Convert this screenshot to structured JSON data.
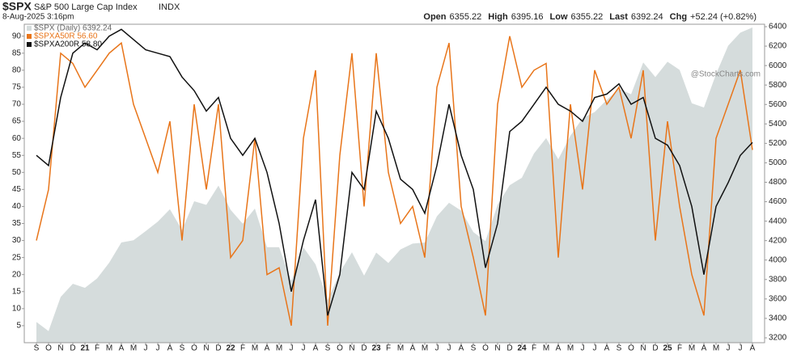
{
  "chart_data": {
    "type": "line",
    "title": "$SPX",
    "subtitle": "S&P 500 Large Cap Index",
    "exchange": "INDX",
    "date": "8-Aug-2025 3:16pm",
    "quote": [
      {
        "label": "Open",
        "value": "6355.22"
      },
      {
        "label": "High",
        "value": "6395.16"
      },
      {
        "label": "Low",
        "value": "6355.22"
      },
      {
        "label": "Last",
        "value": "6392.24"
      },
      {
        "label": "Chg",
        "value": "+52.24 (+0.82%)"
      }
    ],
    "watermark": "@StockCharts.com",
    "categories": [
      "S",
      "O",
      "N",
      "D",
      "21",
      "F",
      "M",
      "A",
      "M",
      "J",
      "J",
      "A",
      "S",
      "O",
      "N",
      "D",
      "22",
      "F",
      "M",
      "A",
      "M",
      "J",
      "J",
      "A",
      "S",
      "O",
      "N",
      "D",
      "23",
      "F",
      "M",
      "A",
      "M",
      "J",
      "J",
      "A",
      "S",
      "O",
      "N",
      "D",
      "24",
      "F",
      "M",
      "A",
      "M",
      "J",
      "J",
      "A",
      "S",
      "O",
      "N",
      "D",
      "25",
      "F",
      "M",
      "A",
      "M",
      "J",
      "J",
      "A"
    ],
    "series": [
      {
        "name": "$SPX (Daily) 6392.24",
        "color": "#d5dcdc",
        "axis": "y2",
        "style": "area",
        "values": [
          3363,
          3270,
          3621,
          3756,
          3714,
          3811,
          3973,
          4181,
          4204,
          4297,
          4395,
          4523,
          4308,
          4605,
          4567,
          4766,
          4516,
          4374,
          4530,
          4132,
          4132,
          3785,
          4130,
          3955,
          3586,
          3872,
          4080,
          3840,
          4077,
          3970,
          4109,
          4169,
          4180,
          4450,
          4589,
          4508,
          4288,
          4194,
          4568,
          4770,
          4846,
          5096,
          5254,
          5036,
          5278,
          5460,
          5522,
          5648,
          5762,
          5705,
          6032,
          5882,
          6040,
          5955,
          5612,
          5569,
          5912,
          6205,
          6339,
          6392
        ]
      },
      {
        "name": "$SPXA50R 56.60",
        "color": "#e8751a",
        "style": "line",
        "values": [
          30,
          45,
          85,
          82,
          75,
          80,
          85,
          88,
          70,
          60,
          50,
          65,
          30,
          70,
          45,
          70,
          25,
          30,
          60,
          20,
          22,
          5,
          60,
          80,
          5,
          55,
          85,
          40,
          85,
          50,
          35,
          40,
          25,
          75,
          88,
          40,
          25,
          8,
          70,
          90,
          75,
          80,
          82,
          25,
          70,
          45,
          80,
          70,
          75,
          60,
          80,
          30,
          65,
          40,
          20,
          8,
          60,
          70,
          80,
          56.6
        ]
      },
      {
        "name": "$SPXA200R 58.80",
        "color": "#111111",
        "style": "line",
        "values": [
          55,
          52,
          72,
          85,
          88,
          86,
          90,
          92,
          89,
          86,
          85,
          84,
          78,
          74,
          68,
          72,
          60,
          55,
          60,
          50,
          35,
          15,
          30,
          42,
          8,
          20,
          50,
          45,
          68,
          60,
          48,
          45,
          38,
          52,
          70,
          55,
          45,
          22,
          35,
          62,
          65,
          70,
          75,
          70,
          68,
          65,
          72,
          73,
          76,
          70,
          72,
          60,
          58,
          52,
          40,
          20,
          40,
          47,
          55,
          58.8
        ]
      }
    ],
    "ylim": [
      0,
      93.5
    ],
    "yticks": [
      5,
      10,
      15,
      20,
      25,
      30,
      35,
      40,
      45,
      50,
      55,
      60,
      65,
      70,
      75,
      80,
      85,
      90
    ],
    "y2lim": [
      3150,
      6425
    ],
    "y2ticks": [
      3200,
      3400,
      3600,
      3800,
      4000,
      4200,
      4400,
      4600,
      4800,
      5000,
      5200,
      5400,
      5600,
      5800,
      6000,
      6200,
      6400
    ],
    "grid": false
  }
}
